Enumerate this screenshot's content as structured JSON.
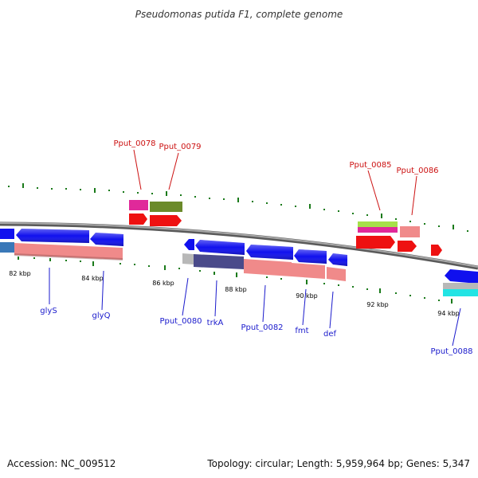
{
  "title": "Pseudomonas putida F1, complete genome",
  "accession": "Accession: NC_009512",
  "topology": "Topology: circular; Length: 5,959,964 bp; Genes: 5,347",
  "colors": {
    "backbone": "#8a8a8a",
    "blue": "#1010ee",
    "salmon": "#f08a8a",
    "red": "#ee1111",
    "magenta": "#e0299a",
    "olive": "#6b8a2a",
    "lightgreen": "#a6e04a",
    "gray": "#b8b8b8",
    "slate": "#4a4a8a",
    "steelblue": "#3a78b8",
    "cyan": "#22e4e4",
    "tick": "#1a7a1a",
    "label_blue": "#1a1acc",
    "label_red": "#cc1111"
  },
  "scale_ticks": [
    "82 kbp",
    "84 kbp",
    "86 kbp",
    "88 kbp",
    "90 kbp",
    "92 kbp",
    "94 kbp"
  ],
  "labels_top": [
    "Pput_0078",
    "Pput_0079",
    "Pput_0085",
    "Pput_0086"
  ],
  "labels_bottom": [
    "glyS",
    "glyQ",
    "Pput_0080",
    "trkA",
    "Pput_0082",
    "fmt",
    "def",
    "Pput_0088"
  ]
}
